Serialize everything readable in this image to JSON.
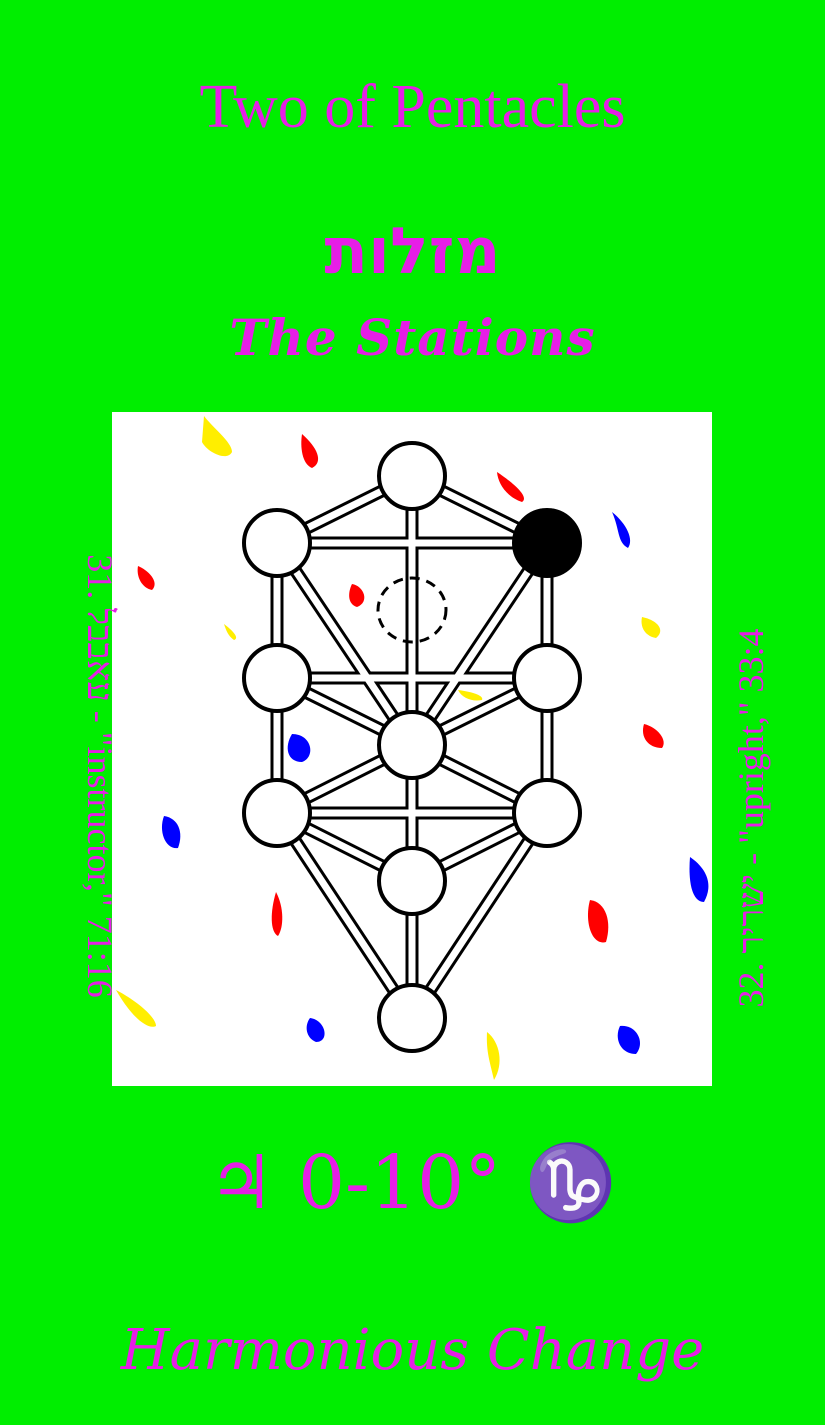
{
  "card": {
    "title": "Two of Pentacles",
    "hebrew_title": "מזלות",
    "subtitle": "The Stations",
    "left_caption": "31. ﬠאבבל - \"instructor,\" 71:16",
    "right_caption": "32. ישריר - \"upright,\" 33:4",
    "astro": "♃ 0-10° ♑",
    "meaning": "Harmonious Change"
  },
  "colors": {
    "background": "#00ee00",
    "text": "#e61ee6",
    "panel": "#ffffff",
    "sephirah_fill": "#ffffff",
    "highlight_sephirah": "#000000",
    "splash_colors": [
      "#ff0000",
      "#0000ff",
      "#ffee00"
    ]
  },
  "tree": {
    "sephirot_count": 10,
    "highlighted": "chokmah",
    "hidden_daath": true
  }
}
